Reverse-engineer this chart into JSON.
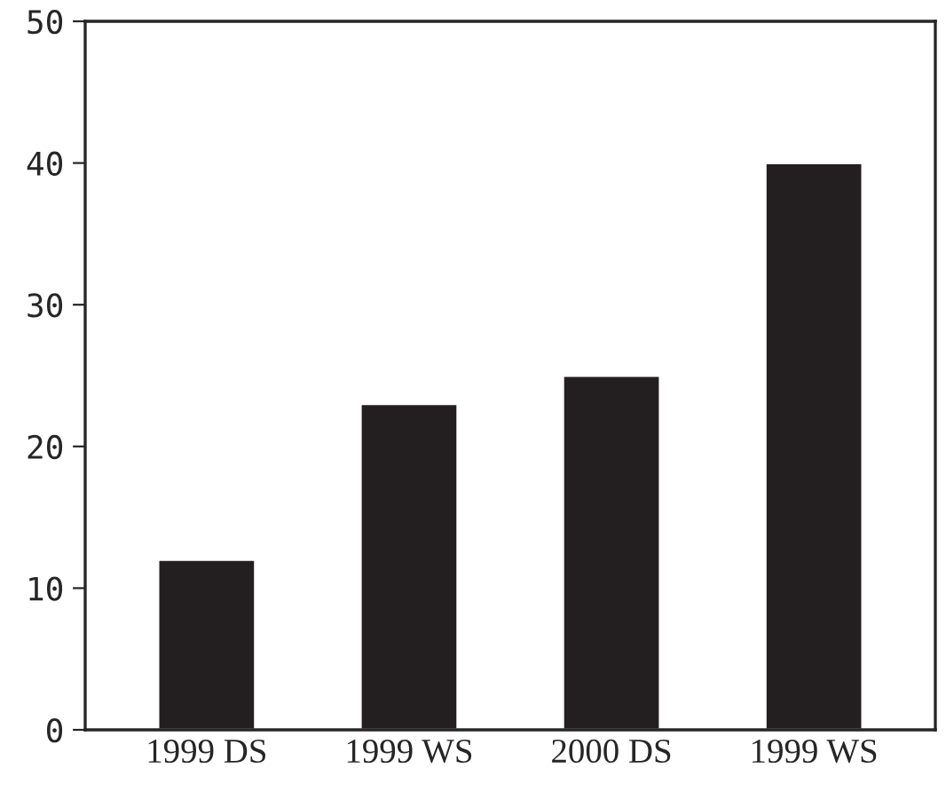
{
  "chart_data": {
    "type": "bar",
    "categories": [
      "1999 DS",
      "1999 WS",
      "2000 DS",
      "1999 WS"
    ],
    "values": [
      12,
      23,
      25,
      40
    ],
    "color": "#231f20",
    "ylim": [
      0,
      50
    ],
    "yticks": [
      0,
      10,
      20,
      30,
      40,
      50
    ],
    "grid": false
  }
}
